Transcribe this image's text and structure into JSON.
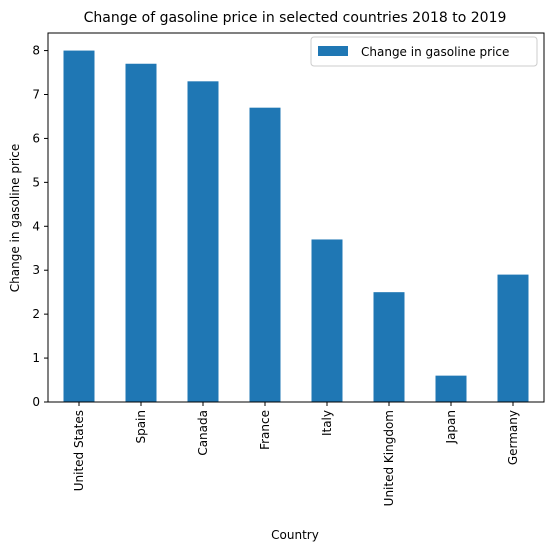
{
  "chart_data": {
    "type": "bar",
    "title": "Change of gasoline price in selected countries 2018 to 2019",
    "xlabel": "Country",
    "ylabel": "Change in gasoline price",
    "categories": [
      "United States",
      "Spain",
      "Canada",
      "France",
      "Italy",
      "United Kingdom",
      "Japan",
      "Germany"
    ],
    "series": [
      {
        "name": "Change in gasoline price",
        "values": [
          8.0,
          7.7,
          7.3,
          6.7,
          3.7,
          2.5,
          0.6,
          2.9
        ]
      }
    ],
    "ylim": [
      0,
      8.4
    ],
    "yticks": [
      "0",
      "1",
      "2",
      "3",
      "4",
      "5",
      "6",
      "7",
      "8"
    ],
    "grid": false,
    "legend_position": "top-right",
    "colors": {
      "bar": "#1f77b4",
      "axis": "#000000",
      "legend_border": "#cccccc"
    }
  }
}
